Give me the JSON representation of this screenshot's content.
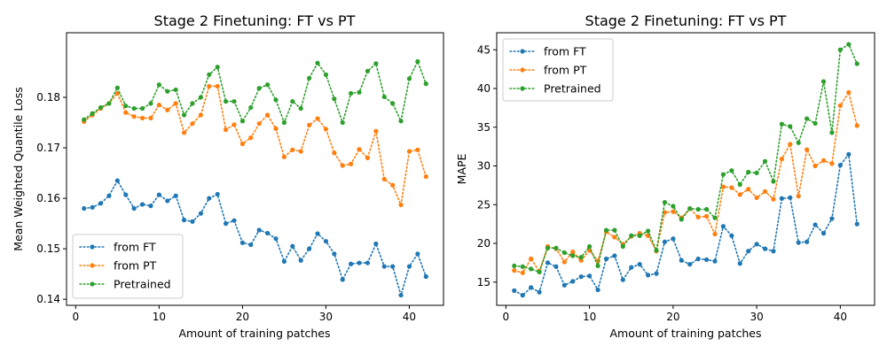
{
  "chart_data": [
    {
      "type": "line",
      "title": "Stage 2 Finetuning: FT vs PT",
      "xlabel": "Amount of training patches",
      "ylabel": "Mean Weighted Quantile Loss",
      "xlim": [
        -1.1,
        44.1
      ],
      "ylim": [
        0.1388,
        0.1928
      ],
      "xticks": [
        0,
        10,
        20,
        30,
        40
      ],
      "yticks": [
        0.14,
        0.15,
        0.16,
        0.17,
        0.18
      ],
      "ytick_labels": [
        "0.14",
        "0.15",
        "0.16",
        "0.17",
        "0.18"
      ],
      "grid": false,
      "legend_position": "lower-left",
      "line_style": "dotted",
      "marker": "circle",
      "x": [
        1,
        2,
        3,
        4,
        5,
        6,
        7,
        8,
        9,
        10,
        11,
        12,
        13,
        14,
        15,
        16,
        17,
        18,
        19,
        20,
        21,
        22,
        23,
        24,
        25,
        26,
        27,
        28,
        29,
        30,
        31,
        32,
        33,
        34,
        35,
        36,
        37,
        38,
        39,
        40,
        41,
        42
      ],
      "series": [
        {
          "name": "from FT",
          "color": "#1f77b4",
          "values": [
            0.158,
            0.1582,
            0.159,
            0.1605,
            0.1635,
            0.1607,
            0.158,
            0.1588,
            0.1585,
            0.1607,
            0.1595,
            0.1605,
            0.1557,
            0.1554,
            0.157,
            0.16,
            0.1608,
            0.155,
            0.1556,
            0.1512,
            0.1508,
            0.1537,
            0.1531,
            0.152,
            0.1475,
            0.1505,
            0.1477,
            0.15,
            0.153,
            0.1515,
            0.149,
            0.1439,
            0.147,
            0.1472,
            0.1472,
            0.151,
            0.1465,
            0.1465,
            0.1408,
            0.1465,
            0.149,
            0.1445
          ]
        },
        {
          "name": "from PT",
          "color": "#ff7f0e",
          "values": [
            0.1752,
            0.1765,
            0.1778,
            0.1788,
            0.1808,
            0.177,
            0.1762,
            0.1759,
            0.1759,
            0.1785,
            0.1775,
            0.1788,
            0.173,
            0.1748,
            0.1765,
            0.1822,
            0.1822,
            0.1736,
            0.1746,
            0.1708,
            0.172,
            0.1748,
            0.1765,
            0.1738,
            0.1682,
            0.1696,
            0.1693,
            0.1745,
            0.1758,
            0.1737,
            0.169,
            0.1665,
            0.1668,
            0.1697,
            0.168,
            0.1733,
            0.1638,
            0.1626,
            0.1587,
            0.1693,
            0.1696,
            0.1643
          ]
        },
        {
          "name": "Pretrained",
          "color": "#2ca02c",
          "values": [
            0.1756,
            0.1768,
            0.178,
            0.1788,
            0.1819,
            0.1783,
            0.1778,
            0.1778,
            0.1788,
            0.1825,
            0.1812,
            0.1815,
            0.1765,
            0.1788,
            0.18,
            0.1845,
            0.186,
            0.1792,
            0.1792,
            0.1753,
            0.178,
            0.1818,
            0.1825,
            0.1795,
            0.175,
            0.1792,
            0.1778,
            0.1838,
            0.1868,
            0.1845,
            0.1797,
            0.175,
            0.1808,
            0.181,
            0.1852,
            0.1867,
            0.1801,
            0.1788,
            0.1753,
            0.1837,
            0.1871,
            0.1827
          ]
        }
      ]
    },
    {
      "type": "line",
      "title": "Stage 2 Finetuning: FT vs PT",
      "xlabel": "Amount of training patches",
      "ylabel": "MAPE",
      "xlim": [
        -1.1,
        44.1
      ],
      "ylim": [
        12.0,
        47.2
      ],
      "xticks": [
        0,
        10,
        20,
        30,
        40
      ],
      "yticks": [
        15,
        20,
        25,
        30,
        35,
        40,
        45
      ],
      "ytick_labels": [
        "15",
        "20",
        "25",
        "30",
        "35",
        "40",
        "45"
      ],
      "grid": false,
      "legend_position": "upper-left",
      "line_style": "dotted",
      "marker": "circle",
      "x": [
        1,
        2,
        3,
        4,
        5,
        6,
        7,
        8,
        9,
        10,
        11,
        12,
        13,
        14,
        15,
        16,
        17,
        18,
        19,
        20,
        21,
        22,
        23,
        24,
        25,
        26,
        27,
        28,
        29,
        30,
        31,
        32,
        33,
        34,
        35,
        36,
        37,
        38,
        39,
        40,
        41,
        42
      ],
      "series": [
        {
          "name": "from FT",
          "color": "#1f77b4",
          "values": [
            13.9,
            13.3,
            14.3,
            13.7,
            17.5,
            17.0,
            14.6,
            15.1,
            15.7,
            15.8,
            14.0,
            18.0,
            18.4,
            15.3,
            16.9,
            17.3,
            15.9,
            16.1,
            20.2,
            20.6,
            17.8,
            17.3,
            18.0,
            17.9,
            17.7,
            22.2,
            21.0,
            17.4,
            19.0,
            19.9,
            19.3,
            19.0,
            25.8,
            25.9,
            20.1,
            20.2,
            22.4,
            21.3,
            23.2,
            30.1,
            31.5,
            22.5
          ]
        },
        {
          "name": "from PT",
          "color": "#ff7f0e",
          "values": [
            16.5,
            16.2,
            18.0,
            16.4,
            19.6,
            19.3,
            17.6,
            18.9,
            17.8,
            19.1,
            17.7,
            21.5,
            20.8,
            19.9,
            20.9,
            21.3,
            21.0,
            19.0,
            24.0,
            24.1,
            23.3,
            24.5,
            23.4,
            23.5,
            21.2,
            27.3,
            27.2,
            26.3,
            27.0,
            25.9,
            26.7,
            25.7,
            30.9,
            32.8,
            26.1,
            32.1,
            30.0,
            30.7,
            30.3,
            37.8,
            39.5,
            35.2
          ]
        },
        {
          "name": "Pretrained",
          "color": "#2ca02c",
          "values": [
            17.1,
            17.0,
            16.7,
            16.3,
            19.4,
            19.4,
            18.8,
            18.4,
            18.2,
            19.6,
            17.1,
            21.7,
            21.7,
            19.6,
            21.0,
            21.0,
            21.6,
            19.1,
            25.3,
            24.8,
            23.1,
            24.5,
            24.4,
            24.4,
            23.3,
            28.9,
            29.4,
            27.6,
            29.2,
            29.1,
            30.6,
            28.0,
            35.4,
            35.1,
            33.0,
            36.1,
            35.5,
            40.9,
            34.3,
            45.0,
            45.7,
            43.2
          ]
        }
      ]
    }
  ]
}
